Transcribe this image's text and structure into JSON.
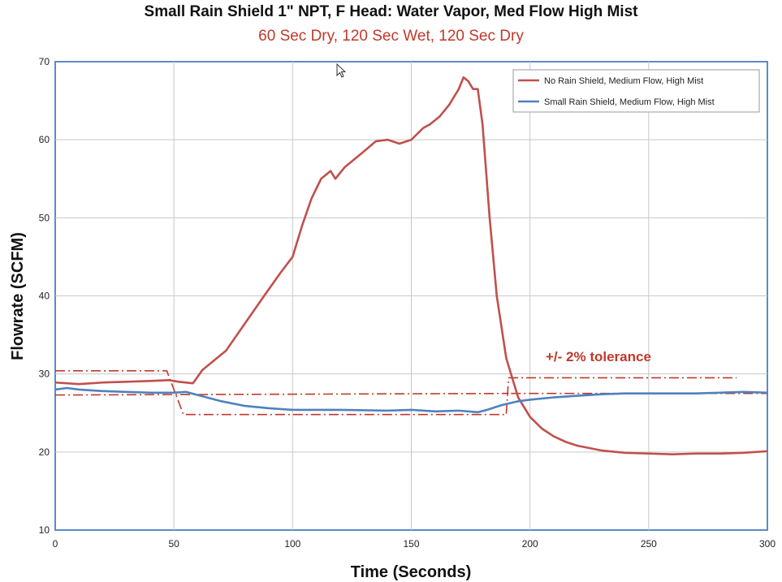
{
  "chart_data": {
    "type": "line",
    "title": "Small Rain Shield 1\" NPT, F Head: Water Vapor, Med Flow High Mist",
    "subtitle": "60 Sec Dry, 120 Sec Wet, 120 Sec Dry",
    "xlabel": "Time (Seconds)",
    "ylabel": "Flowrate (SCFM)",
    "xlim": [
      0,
      300
    ],
    "ylim": [
      10,
      70
    ],
    "xticks": [
      0,
      50,
      100,
      150,
      200,
      250,
      300
    ],
    "yticks": [
      10,
      20,
      30,
      40,
      50,
      60,
      70
    ],
    "grid": true,
    "legend_position": "top-right",
    "series": [
      {
        "name": "No Rain Shield, Medium Flow, High Mist",
        "color": "#c0504d",
        "x": [
          0,
          10,
          20,
          30,
          40,
          48,
          52,
          58,
          62,
          66,
          72,
          80,
          88,
          95,
          100,
          104,
          108,
          112,
          116,
          118,
          122,
          126,
          130,
          135,
          140,
          145,
          150,
          155,
          158,
          162,
          166,
          170,
          172,
          174,
          176,
          178,
          180,
          183,
          186,
          190,
          195,
          200,
          205,
          210,
          215,
          220,
          230,
          240,
          250,
          260,
          270,
          280,
          290,
          300
        ],
        "values": [
          28.9,
          28.7,
          28.9,
          29.0,
          29.1,
          29.2,
          29.0,
          28.8,
          30.5,
          31.5,
          33.0,
          36.5,
          40.0,
          43.0,
          45.0,
          49.0,
          52.5,
          55.0,
          56.0,
          55.0,
          56.5,
          57.5,
          58.5,
          59.8,
          60.0,
          59.5,
          60.0,
          61.5,
          62.0,
          63.0,
          64.5,
          66.5,
          68.0,
          67.5,
          66.5,
          66.5,
          62.0,
          50.0,
          40.0,
          32.0,
          27.0,
          24.5,
          23.0,
          22.0,
          21.3,
          20.8,
          20.2,
          19.9,
          19.8,
          19.7,
          19.8,
          19.8,
          19.9,
          20.1
        ]
      },
      {
        "name": "Small Rain Shield, Medium Flow, High Mist",
        "color": "#4f81bd",
        "x": [
          0,
          5,
          10,
          20,
          30,
          40,
          50,
          55,
          60,
          70,
          80,
          90,
          100,
          120,
          140,
          150,
          160,
          170,
          178,
          182,
          188,
          195,
          200,
          210,
          220,
          230,
          240,
          250,
          260,
          270,
          280,
          290,
          300
        ],
        "values": [
          28.0,
          28.2,
          28.0,
          27.8,
          27.7,
          27.6,
          27.6,
          27.7,
          27.3,
          26.5,
          25.9,
          25.6,
          25.4,
          25.4,
          25.3,
          25.4,
          25.2,
          25.3,
          25.1,
          25.4,
          26.0,
          26.5,
          26.7,
          27.0,
          27.2,
          27.4,
          27.5,
          27.5,
          27.5,
          27.5,
          27.6,
          27.7,
          27.6
        ]
      }
    ],
    "tolerance_bands": {
      "label": "+/- 2% tolerance",
      "color": "#c0392b",
      "lines": [
        {
          "x": [
            0,
            47,
            54,
            190
          ],
          "y": [
            30.4,
            30.4,
            24.8,
            24.8
          ]
        },
        {
          "x": [
            0,
            191
          ],
          "y": [
            27.3,
            27.5
          ]
        },
        {
          "x": [
            190,
            191,
            287
          ],
          "y": [
            24.9,
            29.5,
            29.5
          ]
        },
        {
          "x": [
            192,
            300
          ],
          "y": [
            27.5,
            27.5
          ]
        }
      ]
    }
  }
}
